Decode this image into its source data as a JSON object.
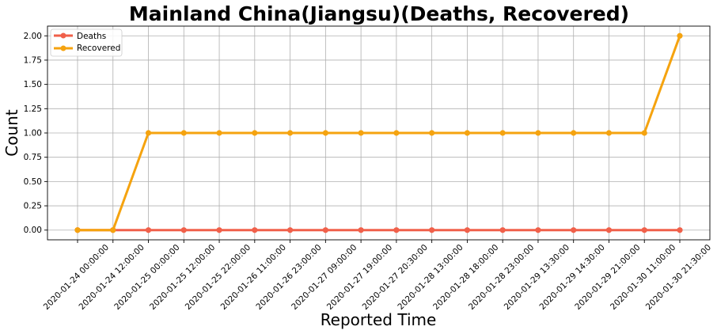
{
  "chart_data": {
    "type": "line",
    "title": "Mainland China(Jiangsu)(Deaths, Recovered)",
    "xlabel": "Reported Time",
    "ylabel": "Count",
    "categories": [
      "2020-01-24 00:00:00",
      "2020-01-24 12:00:00",
      "2020-01-25 00:00:00",
      "2020-01-25 12:00:00",
      "2020-01-25 22:00:00",
      "2020-01-26 11:00:00",
      "2020-01-26 23:00:00",
      "2020-01-27 09:00:00",
      "2020-01-27 19:00:00",
      "2020-01-27 20:30:00",
      "2020-01-28 13:00:00",
      "2020-01-28 18:00:00",
      "2020-01-28 23:00:00",
      "2020-01-29 13:30:00",
      "2020-01-29 14:30:00",
      "2020-01-29 21:00:00",
      "2020-01-30 11:00:00",
      "2020-01-30 21:30:00"
    ],
    "series": [
      {
        "name": "Deaths",
        "color": "#f0604a",
        "values": [
          0,
          0,
          0,
          0,
          0,
          0,
          0,
          0,
          0,
          0,
          0,
          0,
          0,
          0,
          0,
          0,
          0,
          0
        ]
      },
      {
        "name": "Recovered",
        "color": "#f5a30f",
        "values": [
          0,
          0,
          1,
          1,
          1,
          1,
          1,
          1,
          1,
          1,
          1,
          1,
          1,
          1,
          1,
          1,
          1,
          2
        ]
      }
    ],
    "yticks": [
      "0.00",
      "0.25",
      "0.50",
      "0.75",
      "1.00",
      "1.25",
      "1.50",
      "1.75",
      "2.00"
    ],
    "ylim": [
      -0.1,
      2.1
    ],
    "grid": true,
    "legend_position": "top-left"
  }
}
